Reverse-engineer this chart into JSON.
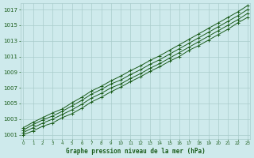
{
  "title": "Graphe pression niveau de la mer (hPa)",
  "xlabel": "Graphe pression niveau de la mer (hPa)",
  "bg_color": "#ceeaec",
  "line_color": "#1a5c1a",
  "grid_color": "#aacccc",
  "text_color": "#1a5c1a",
  "xlim": [
    -0.3,
    23.3
  ],
  "ylim": [
    1000.5,
    1017.8
  ],
  "yticks": [
    1001,
    1003,
    1005,
    1007,
    1009,
    1011,
    1013,
    1015,
    1017
  ],
  "xticks": [
    0,
    1,
    2,
    3,
    4,
    5,
    6,
    7,
    8,
    9,
    10,
    11,
    12,
    13,
    14,
    15,
    16,
    17,
    18,
    19,
    20,
    21,
    22,
    23
  ],
  "lines": [
    [
      1001.0,
      1001.5,
      1002.1,
      1002.5,
      1003.2,
      1003.7,
      1004.4,
      1005.2,
      1005.8,
      1006.5,
      1007.1,
      1007.8,
      1008.4,
      1009.1,
      1009.7,
      1010.4,
      1011.0,
      1011.8,
      1012.4,
      1013.1,
      1013.8,
      1014.5,
      1015.3,
      1016.0
    ],
    [
      1001.3,
      1001.9,
      1002.5,
      1003.0,
      1003.6,
      1004.2,
      1004.9,
      1005.7,
      1006.3,
      1007.0,
      1007.5,
      1008.2,
      1008.8,
      1009.5,
      1010.1,
      1010.8,
      1011.5,
      1012.2,
      1012.9,
      1013.6,
      1014.3,
      1015.0,
      1015.7,
      1016.5
    ],
    [
      1001.6,
      1002.3,
      1002.9,
      1003.4,
      1004.0,
      1004.7,
      1005.4,
      1006.2,
      1006.8,
      1007.5,
      1008.0,
      1008.7,
      1009.3,
      1010.0,
      1010.6,
      1011.3,
      1012.0,
      1012.7,
      1013.4,
      1014.1,
      1014.8,
      1015.5,
      1016.2,
      1017.0
    ],
    [
      1001.9,
      1002.6,
      1003.2,
      1003.8,
      1004.3,
      1005.1,
      1005.8,
      1006.6,
      1007.2,
      1007.9,
      1008.5,
      1009.2,
      1009.8,
      1010.5,
      1011.1,
      1011.8,
      1012.5,
      1013.2,
      1013.9,
      1014.6,
      1015.3,
      1016.0,
      1016.7,
      1017.5
    ]
  ]
}
